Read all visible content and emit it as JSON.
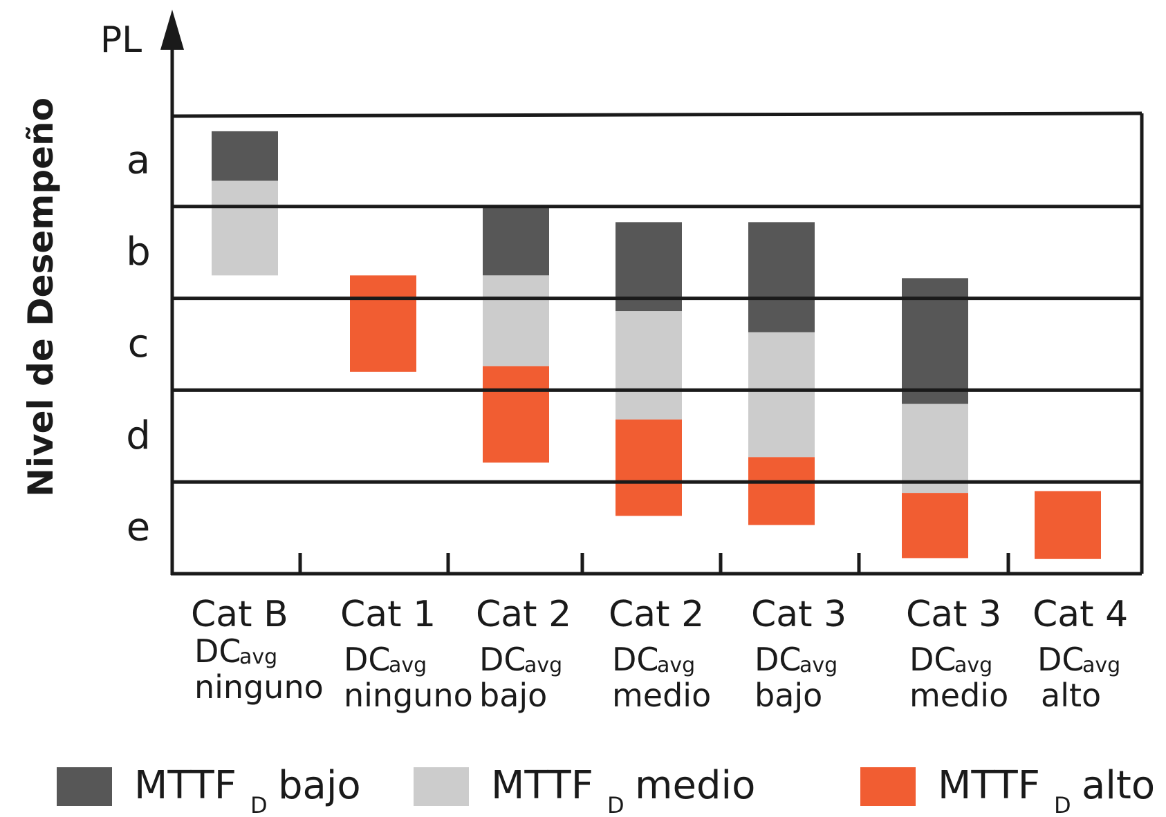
{
  "chart_data": {
    "type": "bar",
    "y_axis_title": "Nivel de Desempeño",
    "y_axis_label": "PL",
    "pl_levels": [
      "a",
      "b",
      "c",
      "d",
      "e"
    ],
    "categories": [
      {
        "cat": "Cat B",
        "dc_label": "DC",
        "dc_sub": "avg",
        "dc_level": "ninguno"
      },
      {
        "cat": "Cat 1",
        "dc_label": "DC",
        "dc_sub": "avg",
        "dc_level": "ninguno"
      },
      {
        "cat": "Cat 2",
        "dc_label": "DC",
        "dc_sub": "avg",
        "dc_level": "bajo"
      },
      {
        "cat": "Cat 2",
        "dc_label": "DC",
        "dc_sub": "avg",
        "dc_level": "medio"
      },
      {
        "cat": "Cat 3",
        "dc_label": "DC",
        "dc_sub": "avg",
        "dc_level": "bajo"
      },
      {
        "cat": "Cat 3",
        "dc_label": "DC",
        "dc_sub": "avg",
        "dc_level": "medio"
      },
      {
        "cat": "Cat 4",
        "dc_label": "DC",
        "dc_sub": "avg",
        "dc_level": "alto"
      }
    ],
    "series": [
      {
        "key": "bajo",
        "name": "MTTF",
        "name_sub": "D",
        "name_level": "bajo",
        "color": "#575757",
        "ranges": [
          [
            4.28,
            4.82
          ],
          null,
          [
            4.0,
            3.25
          ],
          [
            3.83,
            2.86
          ],
          [
            3.83,
            2.63
          ],
          [
            3.22,
            1.85
          ],
          null
        ]
      },
      {
        "key": "medio",
        "name": "MTTF",
        "name_sub": "D",
        "name_level": "medio",
        "color": "#cccccc",
        "ranges": [
          [
            3.25,
            4.28
          ],
          null,
          [
            2.26,
            3.25
          ],
          [
            1.68,
            2.86
          ],
          [
            1.27,
            2.63
          ],
          [
            0.88,
            1.85
          ],
          null
        ]
      },
      {
        "key": "alto",
        "name": "MTTF",
        "name_sub": "D",
        "name_level": "alto",
        "color": "#f15d32",
        "ranges": [
          null,
          [
            2.2,
            3.25
          ],
          [
            1.21,
            2.26
          ],
          [
            0.63,
            1.68
          ],
          [
            0.53,
            1.27
          ],
          [
            0.17,
            0.88
          ],
          [
            0.16,
            0.9
          ]
        ]
      }
    ],
    "y_range": [
      0,
      5
    ],
    "grid": true,
    "legend_position": "bottom"
  }
}
